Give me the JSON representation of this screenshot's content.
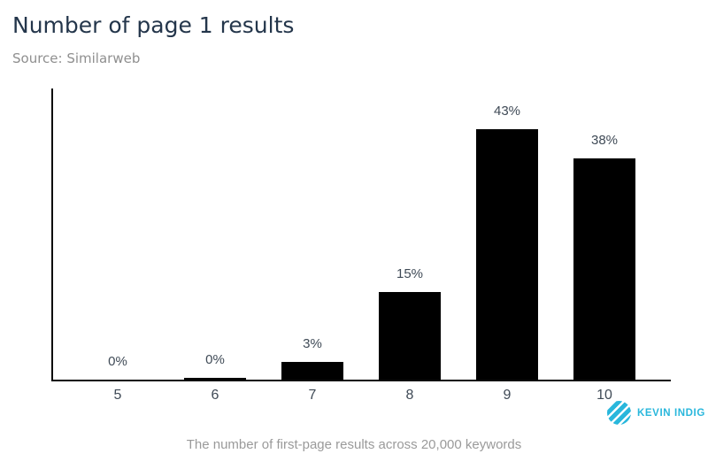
{
  "header": {
    "title": "Number of page 1 results",
    "source": "Source: Similarweb"
  },
  "chart_data": {
    "type": "bar",
    "categories": [
      "5",
      "6",
      "7",
      "8",
      "9",
      "10"
    ],
    "values": [
      0,
      0.3,
      3,
      15,
      43,
      38
    ],
    "value_labels": [
      "0%",
      "0%",
      "3%",
      "15%",
      "43%",
      "38%"
    ],
    "title": "Number of page 1 results",
    "subtitle": "Source: Similarweb",
    "xlabel": "",
    "ylabel": "",
    "ylim": [
      0,
      50
    ],
    "grid": false,
    "legend": false,
    "bar_color": "#000000",
    "axis_color": "#0a0a0a",
    "label_color": "#3f4a56"
  },
  "footer": {
    "caption": "The number of first-page results across 20,000 keywords",
    "logo_text": "KEVIN INDIG",
    "logo_color": "#29b7dc"
  }
}
